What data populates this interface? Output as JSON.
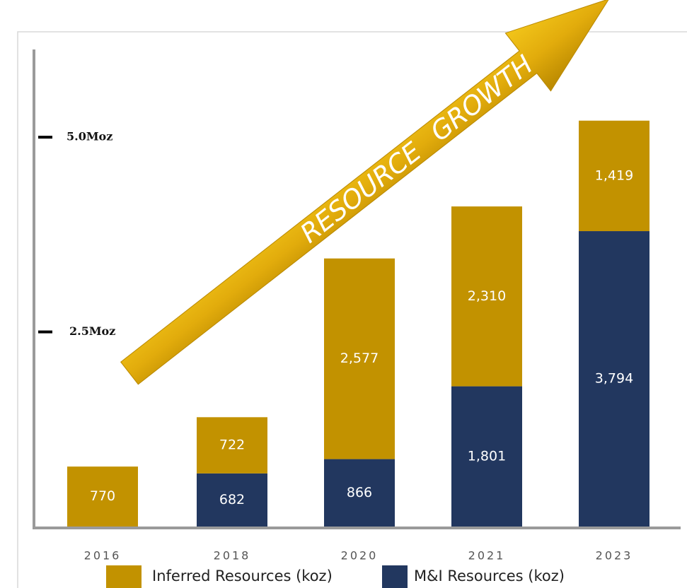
{
  "chart_data": {
    "type": "stacked-bar",
    "annotation": "RESOURCE GROWTH",
    "categories": [
      "2016",
      "2018",
      "2020",
      "2021",
      "2023"
    ],
    "series": [
      {
        "name": "Inferred Resources (koz)",
        "color": "#c29200",
        "values": [
          770,
          722,
          2577,
          2310,
          1419
        ],
        "value_labels": [
          "770",
          "722",
          "2,577",
          "2,310",
          "1,419"
        ]
      },
      {
        "name": "M&I Resources (koz)",
        "color": "#22375f",
        "values": [
          null,
          682,
          866,
          1801,
          3794
        ],
        "value_labels": [
          null,
          "682",
          "866",
          "1,801",
          "3,794"
        ]
      }
    ],
    "ylim": [
      0,
      6100
    ],
    "yticks": [
      {
        "value": 2500,
        "label": "2.5Moz"
      },
      {
        "value": 5000,
        "label": "5.0Moz"
      }
    ]
  }
}
